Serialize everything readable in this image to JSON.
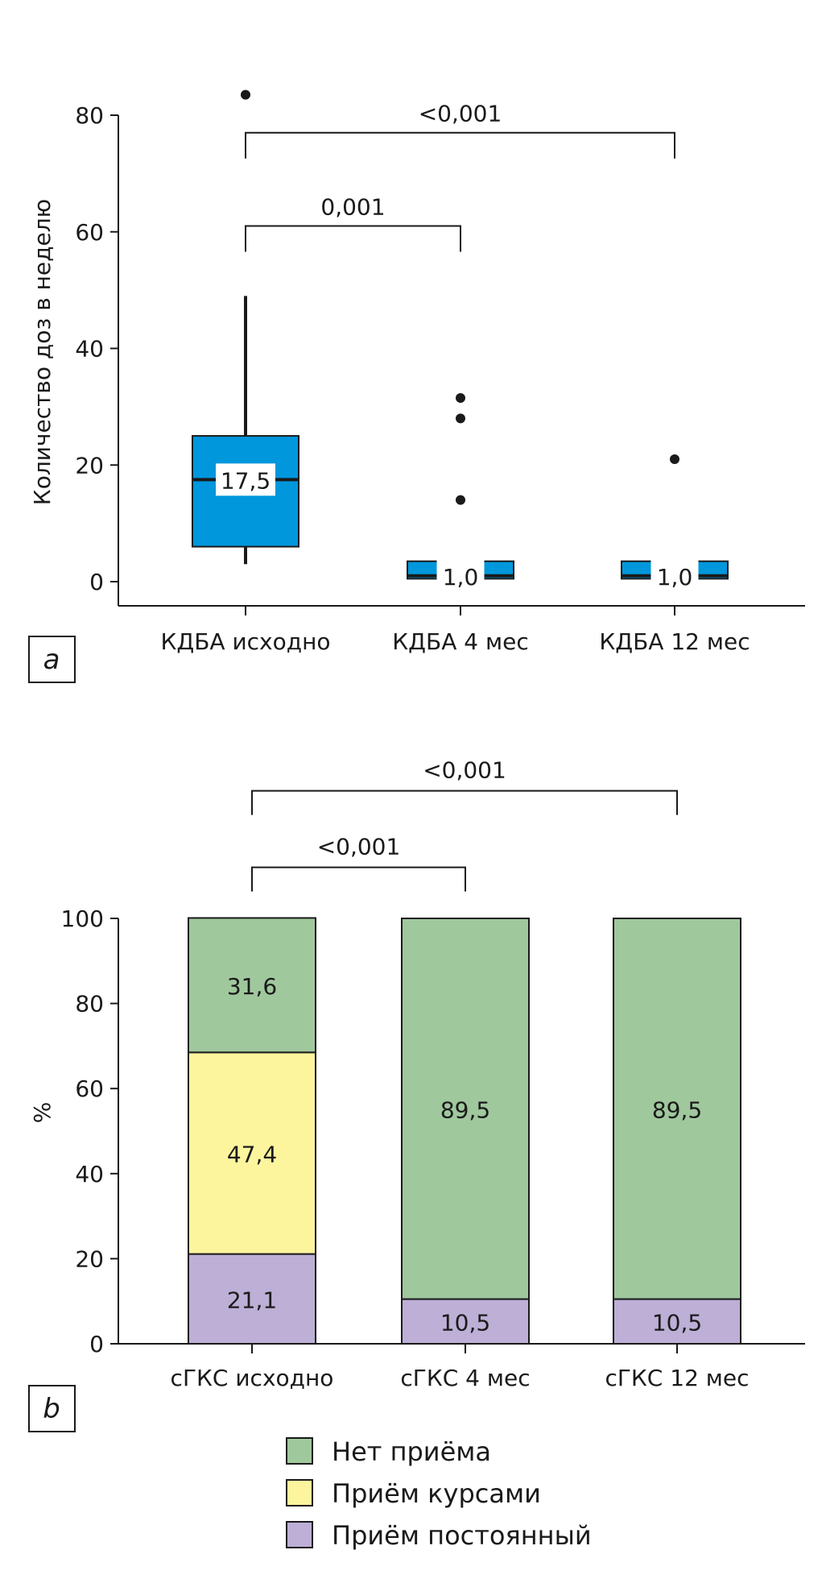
{
  "chart_data": [
    {
      "type": "box",
      "panel_label": "a",
      "ylabel": "Количество доз в неделю",
      "ylim": [
        0,
        80
      ],
      "yticks": [
        "0",
        "20",
        "40",
        "60",
        "80"
      ],
      "color": "#0097dc",
      "boxes": [
        {
          "category": "КДБА исходно",
          "whisker_low": 3,
          "q1": 6,
          "median": 17.5,
          "q3": 25,
          "whisker_high": 49,
          "outliers": [
            83.5
          ],
          "median_label": "17,5"
        },
        {
          "category": "КДБА 4 мес",
          "whisker_low": 0.5,
          "q1": 0.5,
          "median": 1.0,
          "q3": 3.5,
          "whisker_high": 3.5,
          "outliers": [
            31.5,
            28,
            14
          ],
          "median_label": "1,0"
        },
        {
          "category": "КДБА 12 мес",
          "whisker_low": 0.5,
          "q1": 0.5,
          "median": 1.0,
          "q3": 3.5,
          "whisker_high": 3.5,
          "outliers": [
            21
          ],
          "median_label": "1,0"
        }
      ],
      "comparisons": [
        {
          "from": 0,
          "to": 2,
          "label": "<0,001",
          "level": 77
        },
        {
          "from": 0,
          "to": 1,
          "label": "0,001",
          "level": 61
        }
      ]
    },
    {
      "type": "stacked_bar",
      "panel_label": "b",
      "ylabel": "%",
      "ylim": [
        0,
        100
      ],
      "yticks": [
        "0",
        "20",
        "40",
        "60",
        "80",
        "100"
      ],
      "categories": [
        "сГКС исходно",
        "сГКС 4 мес",
        "сГКС  12 мес"
      ],
      "series": [
        {
          "name": "Приём постоянный",
          "color": "#bdafd6",
          "values": [
            21.1,
            10.5,
            10.5
          ],
          "labels": [
            "21,1",
            "10,5",
            "10,5"
          ]
        },
        {
          "name": "Приём курсами",
          "color": "#fdf59e",
          "values": [
            47.4,
            0,
            0
          ],
          "labels": [
            "47,4",
            "",
            ""
          ]
        },
        {
          "name": "Нет приёма",
          "color": "#a0c89d",
          "values": [
            31.6,
            89.5,
            89.5
          ],
          "labels": [
            "31,6",
            "89,5",
            "89,5"
          ]
        }
      ],
      "comparisons": [
        {
          "from": 0,
          "to": 2,
          "label": "<0,001",
          "level": 130
        },
        {
          "from": 0,
          "to": 1,
          "label": "<0,001",
          "level": 112
        }
      ],
      "legend": {
        "placement": "bottom",
        "items": [
          {
            "name": "Нет приёма",
            "color": "#a0c89d"
          },
          {
            "name": "Приём курсами",
            "color": "#fdf59e"
          },
          {
            "name": "Приём постоянный",
            "color": "#bdafd6"
          }
        ]
      }
    }
  ]
}
